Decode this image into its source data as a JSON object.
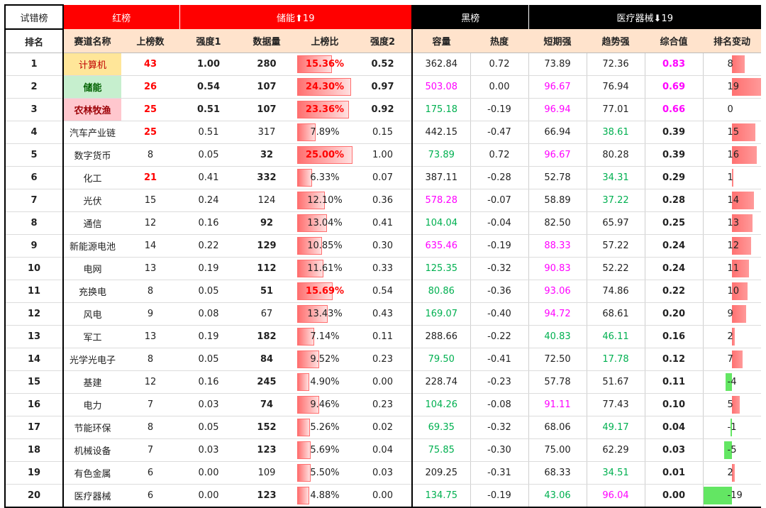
{
  "header_top": {
    "title": "试错榜",
    "red_board": "红榜",
    "featured_up": "储能⬆19",
    "black_board": "黑榜",
    "featured_down": "医疗器械⬇19"
  },
  "columns": [
    "排名",
    "赛道名称",
    "上榜数",
    "强度1",
    "数据量",
    "上榜比",
    "强度2",
    "容量",
    "热度",
    "短期强",
    "趋势强",
    "综合值",
    "排名变动"
  ],
  "rows": [
    {
      "rank": "1",
      "name": "计算机",
      "count": "43",
      "s1": "1.00",
      "data": "280",
      "ratio": "15.36%",
      "ratio_v": 0.1536,
      "s2": "0.52",
      "cap": "362.84",
      "heat": "0.72",
      "short": "73.89",
      "trend": "72.36",
      "comp": "0.83",
      "chg": "8",
      "chg_v": 8
    },
    {
      "rank": "2",
      "name": "储能",
      "count": "26",
      "s1": "0.54",
      "data": "107",
      "ratio": "24.30%",
      "ratio_v": 0.243,
      "s2": "0.97",
      "cap": "503.08",
      "heat": "0.00",
      "short": "96.67",
      "trend": "76.94",
      "comp": "0.69",
      "chg": "19",
      "chg_v": 19
    },
    {
      "rank": "3",
      "name": "农林牧渔",
      "count": "25",
      "s1": "0.51",
      "data": "107",
      "ratio": "23.36%",
      "ratio_v": 0.2336,
      "s2": "0.92",
      "cap": "175.18",
      "heat": "-0.19",
      "short": "96.94",
      "trend": "77.01",
      "comp": "0.66",
      "chg": "0",
      "chg_v": 0
    },
    {
      "rank": "4",
      "name": "汽车产业链",
      "count": "25",
      "s1": "0.51",
      "data": "317",
      "ratio": "7.89%",
      "ratio_v": 0.0789,
      "s2": "0.15",
      "cap": "442.15",
      "heat": "-0.47",
      "short": "66.94",
      "trend": "38.61",
      "comp": "0.39",
      "chg": "15",
      "chg_v": 15
    },
    {
      "rank": "5",
      "name": "数字货币",
      "count": "8",
      "s1": "0.05",
      "data": "32",
      "ratio": "25.00%",
      "ratio_v": 0.25,
      "s2": "1.00",
      "cap": "73.89",
      "heat": "0.72",
      "short": "96.67",
      "trend": "80.28",
      "comp": "0.39",
      "chg": "16",
      "chg_v": 16
    },
    {
      "rank": "6",
      "name": "化工",
      "count": "21",
      "s1": "0.41",
      "data": "332",
      "ratio": "6.33%",
      "ratio_v": 0.0633,
      "s2": "0.07",
      "cap": "387.11",
      "heat": "-0.28",
      "short": "52.78",
      "trend": "34.31",
      "comp": "0.29",
      "chg": "1",
      "chg_v": 1
    },
    {
      "rank": "7",
      "name": "光伏",
      "count": "15",
      "s1": "0.24",
      "data": "124",
      "ratio": "12.10%",
      "ratio_v": 0.121,
      "s2": "0.36",
      "cap": "578.28",
      "heat": "-0.07",
      "short": "58.89",
      "trend": "37.22",
      "comp": "0.28",
      "chg": "14",
      "chg_v": 14
    },
    {
      "rank": "8",
      "name": "通信",
      "count": "12",
      "s1": "0.16",
      "data": "92",
      "ratio": "13.04%",
      "ratio_v": 0.1304,
      "s2": "0.41",
      "cap": "104.04",
      "heat": "-0.04",
      "short": "82.50",
      "trend": "65.97",
      "comp": "0.25",
      "chg": "13",
      "chg_v": 13
    },
    {
      "rank": "9",
      "name": "新能源电池",
      "count": "14",
      "s1": "0.22",
      "data": "129",
      "ratio": "10.85%",
      "ratio_v": 0.1085,
      "s2": "0.30",
      "cap": "635.46",
      "heat": "-0.19",
      "short": "88.33",
      "trend": "57.22",
      "comp": "0.24",
      "chg": "12",
      "chg_v": 12
    },
    {
      "rank": "10",
      "name": "电网",
      "count": "13",
      "s1": "0.19",
      "data": "112",
      "ratio": "11.61%",
      "ratio_v": 0.1161,
      "s2": "0.33",
      "cap": "125.35",
      "heat": "-0.32",
      "short": "90.83",
      "trend": "52.22",
      "comp": "0.24",
      "chg": "11",
      "chg_v": 11
    },
    {
      "rank": "11",
      "name": "充换电",
      "count": "8",
      "s1": "0.05",
      "data": "51",
      "ratio": "15.69%",
      "ratio_v": 0.1569,
      "s2": "0.54",
      "cap": "80.86",
      "heat": "-0.36",
      "short": "93.06",
      "trend": "74.86",
      "comp": "0.22",
      "chg": "10",
      "chg_v": 10
    },
    {
      "rank": "12",
      "name": "风电",
      "count": "9",
      "s1": "0.08",
      "data": "67",
      "ratio": "13.43%",
      "ratio_v": 0.1343,
      "s2": "0.43",
      "cap": "169.07",
      "heat": "-0.40",
      "short": "94.72",
      "trend": "68.61",
      "comp": "0.20",
      "chg": "9",
      "chg_v": 9
    },
    {
      "rank": "13",
      "name": "军工",
      "count": "13",
      "s1": "0.19",
      "data": "182",
      "ratio": "7.14%",
      "ratio_v": 0.0714,
      "s2": "0.11",
      "cap": "288.66",
      "heat": "-0.22",
      "short": "40.83",
      "trend": "46.11",
      "comp": "0.16",
      "chg": "2",
      "chg_v": 2
    },
    {
      "rank": "14",
      "name": "光学光电子",
      "count": "8",
      "s1": "0.05",
      "data": "84",
      "ratio": "9.52%",
      "ratio_v": 0.0952,
      "s2": "0.23",
      "cap": "79.50",
      "heat": "-0.41",
      "short": "72.50",
      "trend": "17.78",
      "comp": "0.12",
      "chg": "7",
      "chg_v": 7
    },
    {
      "rank": "15",
      "name": "基建",
      "count": "12",
      "s1": "0.16",
      "data": "245",
      "ratio": "4.90%",
      "ratio_v": 0.049,
      "s2": "0.00",
      "cap": "228.74",
      "heat": "-0.23",
      "short": "57.78",
      "trend": "51.67",
      "comp": "0.11",
      "chg": "-4",
      "chg_v": -4
    },
    {
      "rank": "16",
      "name": "电力",
      "count": "7",
      "s1": "0.03",
      "data": "74",
      "ratio": "9.46%",
      "ratio_v": 0.0946,
      "s2": "0.23",
      "cap": "104.26",
      "heat": "-0.08",
      "short": "91.11",
      "trend": "77.43",
      "comp": "0.10",
      "chg": "5",
      "chg_v": 5
    },
    {
      "rank": "17",
      "name": "节能环保",
      "count": "8",
      "s1": "0.05",
      "data": "152",
      "ratio": "5.26%",
      "ratio_v": 0.0526,
      "s2": "0.02",
      "cap": "69.35",
      "heat": "-0.32",
      "short": "68.06",
      "trend": "49.17",
      "comp": "0.04",
      "chg": "-1",
      "chg_v": -1
    },
    {
      "rank": "18",
      "name": "机械设备",
      "count": "7",
      "s1": "0.03",
      "data": "123",
      "ratio": "5.69%",
      "ratio_v": 0.0569,
      "s2": "0.04",
      "cap": "75.85",
      "heat": "-0.30",
      "short": "75.00",
      "trend": "62.29",
      "comp": "0.03",
      "chg": "-5",
      "chg_v": -5
    },
    {
      "rank": "19",
      "name": "有色金属",
      "count": "6",
      "s1": "0.00",
      "data": "109",
      "ratio": "5.50%",
      "ratio_v": 0.055,
      "s2": "0.03",
      "cap": "209.25",
      "heat": "-0.31",
      "short": "68.33",
      "trend": "34.51",
      "comp": "0.01",
      "chg": "2",
      "chg_v": 2
    },
    {
      "rank": "20",
      "name": "医疗器械",
      "count": "6",
      "s1": "0.00",
      "data": "123",
      "ratio": "4.88%",
      "ratio_v": 0.0488,
      "s2": "0.00",
      "cap": "134.75",
      "heat": "-0.19",
      "short": "43.06",
      "trend": "96.04",
      "comp": "0.00",
      "chg": "-19",
      "chg_v": -19
    }
  ],
  "styles": {
    "count_red": [
      "1",
      "2",
      "3",
      "4",
      "6"
    ],
    "data_bold": [
      "1",
      "2",
      "3",
      "5",
      "6",
      "8",
      "9",
      "10",
      "11",
      "13",
      "14",
      "15",
      "16",
      "17",
      "18",
      "20"
    ],
    "ratio_red_text": [
      "1",
      "2",
      "3",
      "5",
      "11"
    ],
    "cap_magenta": [
      "2",
      "7",
      "9"
    ],
    "cap_green": [
      "3",
      "5",
      "8",
      "10",
      "11",
      "12",
      "14",
      "16",
      "17",
      "18",
      "20"
    ],
    "short_magenta": [
      "2",
      "3",
      "5",
      "9",
      "10",
      "11",
      "12",
      "16"
    ],
    "short_green": [
      "13",
      "20"
    ],
    "trend_green": [
      "4",
      "6",
      "7",
      "13",
      "14",
      "17",
      "19"
    ],
    "trend_magenta": [
      "20"
    ],
    "comp_magenta": [
      "1",
      "2",
      "3"
    ],
    "s1_bold": [
      "1",
      "2",
      "3"
    ],
    "s2_bold": [
      "1",
      "2",
      "3"
    ],
    "name_highlight": {
      "1": "name-hi1",
      "2": "name-hi2",
      "3": "name-hi3"
    },
    "colors": {
      "red_board": "#ff0000",
      "black_board": "#000000",
      "header_bg": "#ffe3cc",
      "magenta": "#ff00ff",
      "green": "#00b050",
      "pos_bar": "#ff7070",
      "neg_bar": "#63e663"
    }
  }
}
